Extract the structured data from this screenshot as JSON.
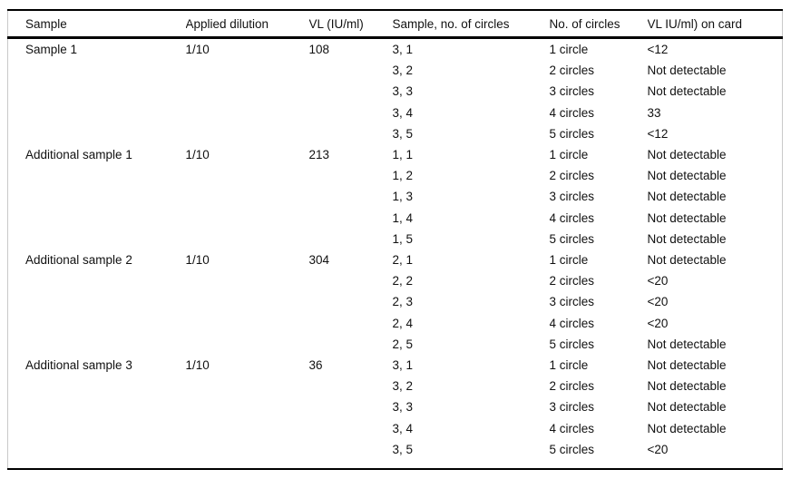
{
  "table": {
    "columns": [
      "Sample",
      "Applied dilution",
      "VL (IU/ml)",
      "Sample, no. of circles",
      "No. of circles",
      "VL IU/ml) on card"
    ],
    "groups": [
      {
        "sample": "Sample 1",
        "applied_dilution": "1/10",
        "vl": "108",
        "rows": [
          {
            "sample_no_of_circles": "3, 1",
            "no_of_circles": "1 circle",
            "vl_on_card": "<12"
          },
          {
            "sample_no_of_circles": "3, 2",
            "no_of_circles": "2 circles",
            "vl_on_card": "Not detectable"
          },
          {
            "sample_no_of_circles": "3, 3",
            "no_of_circles": "3 circles",
            "vl_on_card": "Not detectable"
          },
          {
            "sample_no_of_circles": "3, 4",
            "no_of_circles": "4 circles",
            "vl_on_card": "33"
          },
          {
            "sample_no_of_circles": "3, 5",
            "no_of_circles": "5 circles",
            "vl_on_card": "<12"
          }
        ]
      },
      {
        "sample": "Additional sample 1",
        "applied_dilution": "1/10",
        "vl": "213",
        "rows": [
          {
            "sample_no_of_circles": "1, 1",
            "no_of_circles": "1 circle",
            "vl_on_card": "Not detectable"
          },
          {
            "sample_no_of_circles": "1, 2",
            "no_of_circles": "2 circles",
            "vl_on_card": "Not detectable"
          },
          {
            "sample_no_of_circles": "1, 3",
            "no_of_circles": "3 circles",
            "vl_on_card": "Not detectable"
          },
          {
            "sample_no_of_circles": "1, 4",
            "no_of_circles": "4 circles",
            "vl_on_card": "Not detectable"
          },
          {
            "sample_no_of_circles": "1, 5",
            "no_of_circles": "5 circles",
            "vl_on_card": "Not detectable"
          }
        ]
      },
      {
        "sample": "Additional sample 2",
        "applied_dilution": "1/10",
        "vl": "304",
        "rows": [
          {
            "sample_no_of_circles": "2, 1",
            "no_of_circles": "1 circle",
            "vl_on_card": "Not detectable"
          },
          {
            "sample_no_of_circles": "2, 2",
            "no_of_circles": "2 circles",
            "vl_on_card": "<20"
          },
          {
            "sample_no_of_circles": "2, 3",
            "no_of_circles": "3 circles",
            "vl_on_card": "<20"
          },
          {
            "sample_no_of_circles": "2, 4",
            "no_of_circles": "4 circles",
            "vl_on_card": "<20"
          },
          {
            "sample_no_of_circles": "2, 5",
            "no_of_circles": "5 circles",
            "vl_on_card": "Not detectable"
          }
        ]
      },
      {
        "sample": "Additional sample 3",
        "applied_dilution": "1/10",
        "vl": "36",
        "rows": [
          {
            "sample_no_of_circles": "3, 1",
            "no_of_circles": "1 circle",
            "vl_on_card": "Not detectable"
          },
          {
            "sample_no_of_circles": "3, 2",
            "no_of_circles": "2 circles",
            "vl_on_card": "Not detectable"
          },
          {
            "sample_no_of_circles": "3, 3",
            "no_of_circles": "3 circles",
            "vl_on_card": "Not detectable"
          },
          {
            "sample_no_of_circles": "3, 4",
            "no_of_circles": "4 circles",
            "vl_on_card": "Not detectable"
          },
          {
            "sample_no_of_circles": "3, 5",
            "no_of_circles": "5 circles",
            "vl_on_card": "<20"
          }
        ]
      }
    ]
  },
  "colors": {
    "rule": "#000000",
    "frame_border": "#c9c9c9",
    "text": "#111111",
    "background": "#ffffff"
  }
}
